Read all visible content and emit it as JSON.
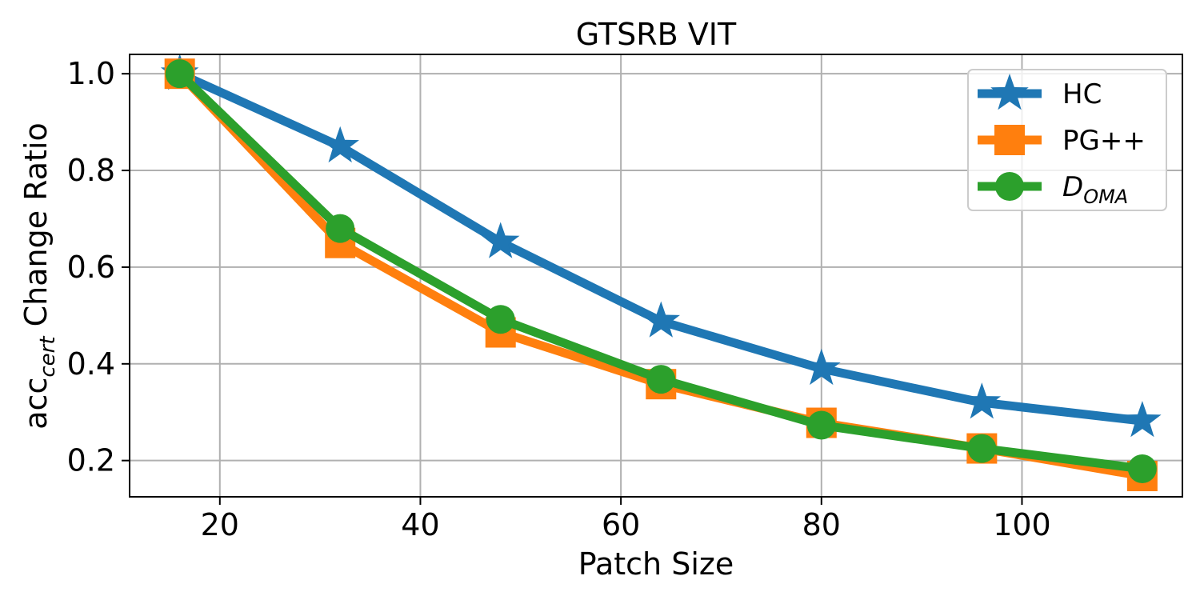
{
  "chart_data": {
    "type": "line",
    "title": "GTSRB VIT",
    "xlabel": "Patch Size",
    "ylabel_main": "acc",
    "ylabel_sub": "cert",
    "ylabel_rest": " Change Ratio",
    "xlim": [
      11,
      116
    ],
    "ylim": [
      0.125,
      1.04
    ],
    "xticks": [
      20,
      40,
      60,
      80,
      100
    ],
    "yticks": [
      0.2,
      0.4,
      0.6,
      0.8,
      1.0
    ],
    "xtick_labels": [
      "20",
      "40",
      "60",
      "80",
      "100"
    ],
    "ytick_labels": [
      "0.2",
      "0.4",
      "0.6",
      "0.8",
      "1.0"
    ],
    "grid": true,
    "legend_position": "top-right",
    "x": [
      16,
      32,
      48,
      64,
      80,
      96,
      112
    ],
    "series": [
      {
        "name": "HC",
        "marker": "star",
        "color": "#1f77b4",
        "values": [
          1.0,
          0.85,
          0.652,
          0.488,
          0.39,
          0.32,
          0.282
        ]
      },
      {
        "name": "PG++",
        "marker": "square",
        "color": "#ff7f0e",
        "values": [
          1.0,
          0.65,
          0.465,
          0.358,
          0.278,
          0.225,
          0.168
        ]
      },
      {
        "name": "D",
        "name_sub": "OMA",
        "marker": "circle",
        "color": "#2ca02c",
        "values": [
          1.0,
          0.68,
          0.492,
          0.368,
          0.273,
          0.225,
          0.183
        ]
      }
    ]
  }
}
